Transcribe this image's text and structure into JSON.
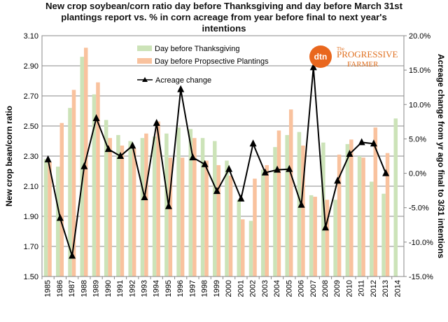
{
  "chart_data": {
    "type": "bar",
    "title": "New crop soybean/corn ratio day before Thanksgiving and day before March 31st plantings  report vs. % in corn acreage from year before final to next year's intentions",
    "ylabel": "New crop bean/corn ratio",
    "y2label": "Acreage change from  yr ago final to 3/31 intentions",
    "ylim": [
      1.5,
      3.1
    ],
    "yticks": [
      "1.50",
      "1.70",
      "1.90",
      "2.10",
      "2.30",
      "2.50",
      "2.70",
      "2.90",
      "3.10"
    ],
    "y2lim": [
      -15,
      20
    ],
    "y2ticks": [
      "-15.0%",
      "-10.0%",
      "-5.0%",
      "0.0%",
      "5.0%",
      "10.0%",
      "15.0%",
      "20.0%"
    ],
    "grid": true,
    "legend_position": "top",
    "categories": [
      "1985",
      "1986",
      "1987",
      "1988",
      "1989",
      "1990",
      "1991",
      "1992",
      "1993",
      "1994",
      "1995",
      "1996",
      "1997",
      "1998",
      "1999",
      "2000",
      "2001",
      "2002",
      "2003",
      "2004",
      "2005",
      "2006",
      "2007",
      "2008",
      "2009",
      "2010",
      "2011",
      "2012",
      "2013",
      "2014"
    ],
    "series": [
      {
        "name": "Day before Thanksgiving",
        "kind": "bar",
        "axis": "left",
        "color": "#cce3b8",
        "values": [
          2.28,
          2.23,
          2.62,
          2.96,
          2.71,
          2.54,
          2.44,
          2.4,
          2.42,
          2.43,
          2.45,
          2.49,
          2.48,
          2.42,
          2.4,
          2.27,
          2.01,
          1.87,
          2.21,
          2.36,
          2.44,
          2.46,
          2.04,
          2.39,
          2.01,
          2.38,
          2.3,
          2.13,
          2.05,
          2.55
        ]
      },
      {
        "name": "Day before Propsective Plantings",
        "kind": "bar",
        "axis": "left",
        "color": "#f9c29e",
        "values": [
          2.26,
          2.52,
          2.74,
          3.02,
          2.79,
          2.42,
          2.37,
          2.35,
          2.45,
          2.53,
          2.29,
          2.29,
          2.42,
          2.27,
          2.24,
          2.17,
          1.88,
          2.15,
          2.24,
          2.47,
          2.61,
          2.37,
          2.03,
          2.01,
          2.31,
          2.41,
          2.29,
          2.49,
          2.32,
          null
        ]
      },
      {
        "name": "Acreage change",
        "kind": "line",
        "axis": "right",
        "color": "#000000",
        "values": [
          2.0,
          -6.5,
          -12.0,
          1.0,
          8.0,
          3.5,
          2.5,
          4.0,
          -3.5,
          7.3,
          -4.8,
          12.2,
          2.3,
          1.3,
          -2.6,
          0.6,
          -3.7,
          4.3,
          0.1,
          0.5,
          0.6,
          -4.6,
          15.4,
          -7.9,
          -1.1,
          2.8,
          4.5,
          4.3,
          0.0,
          null
        ]
      }
    ]
  },
  "logo": {
    "brand": "dtn",
    "name_line1": "PROGRESSIVE",
    "name_line2": "FARMER",
    "prefix": "The"
  }
}
